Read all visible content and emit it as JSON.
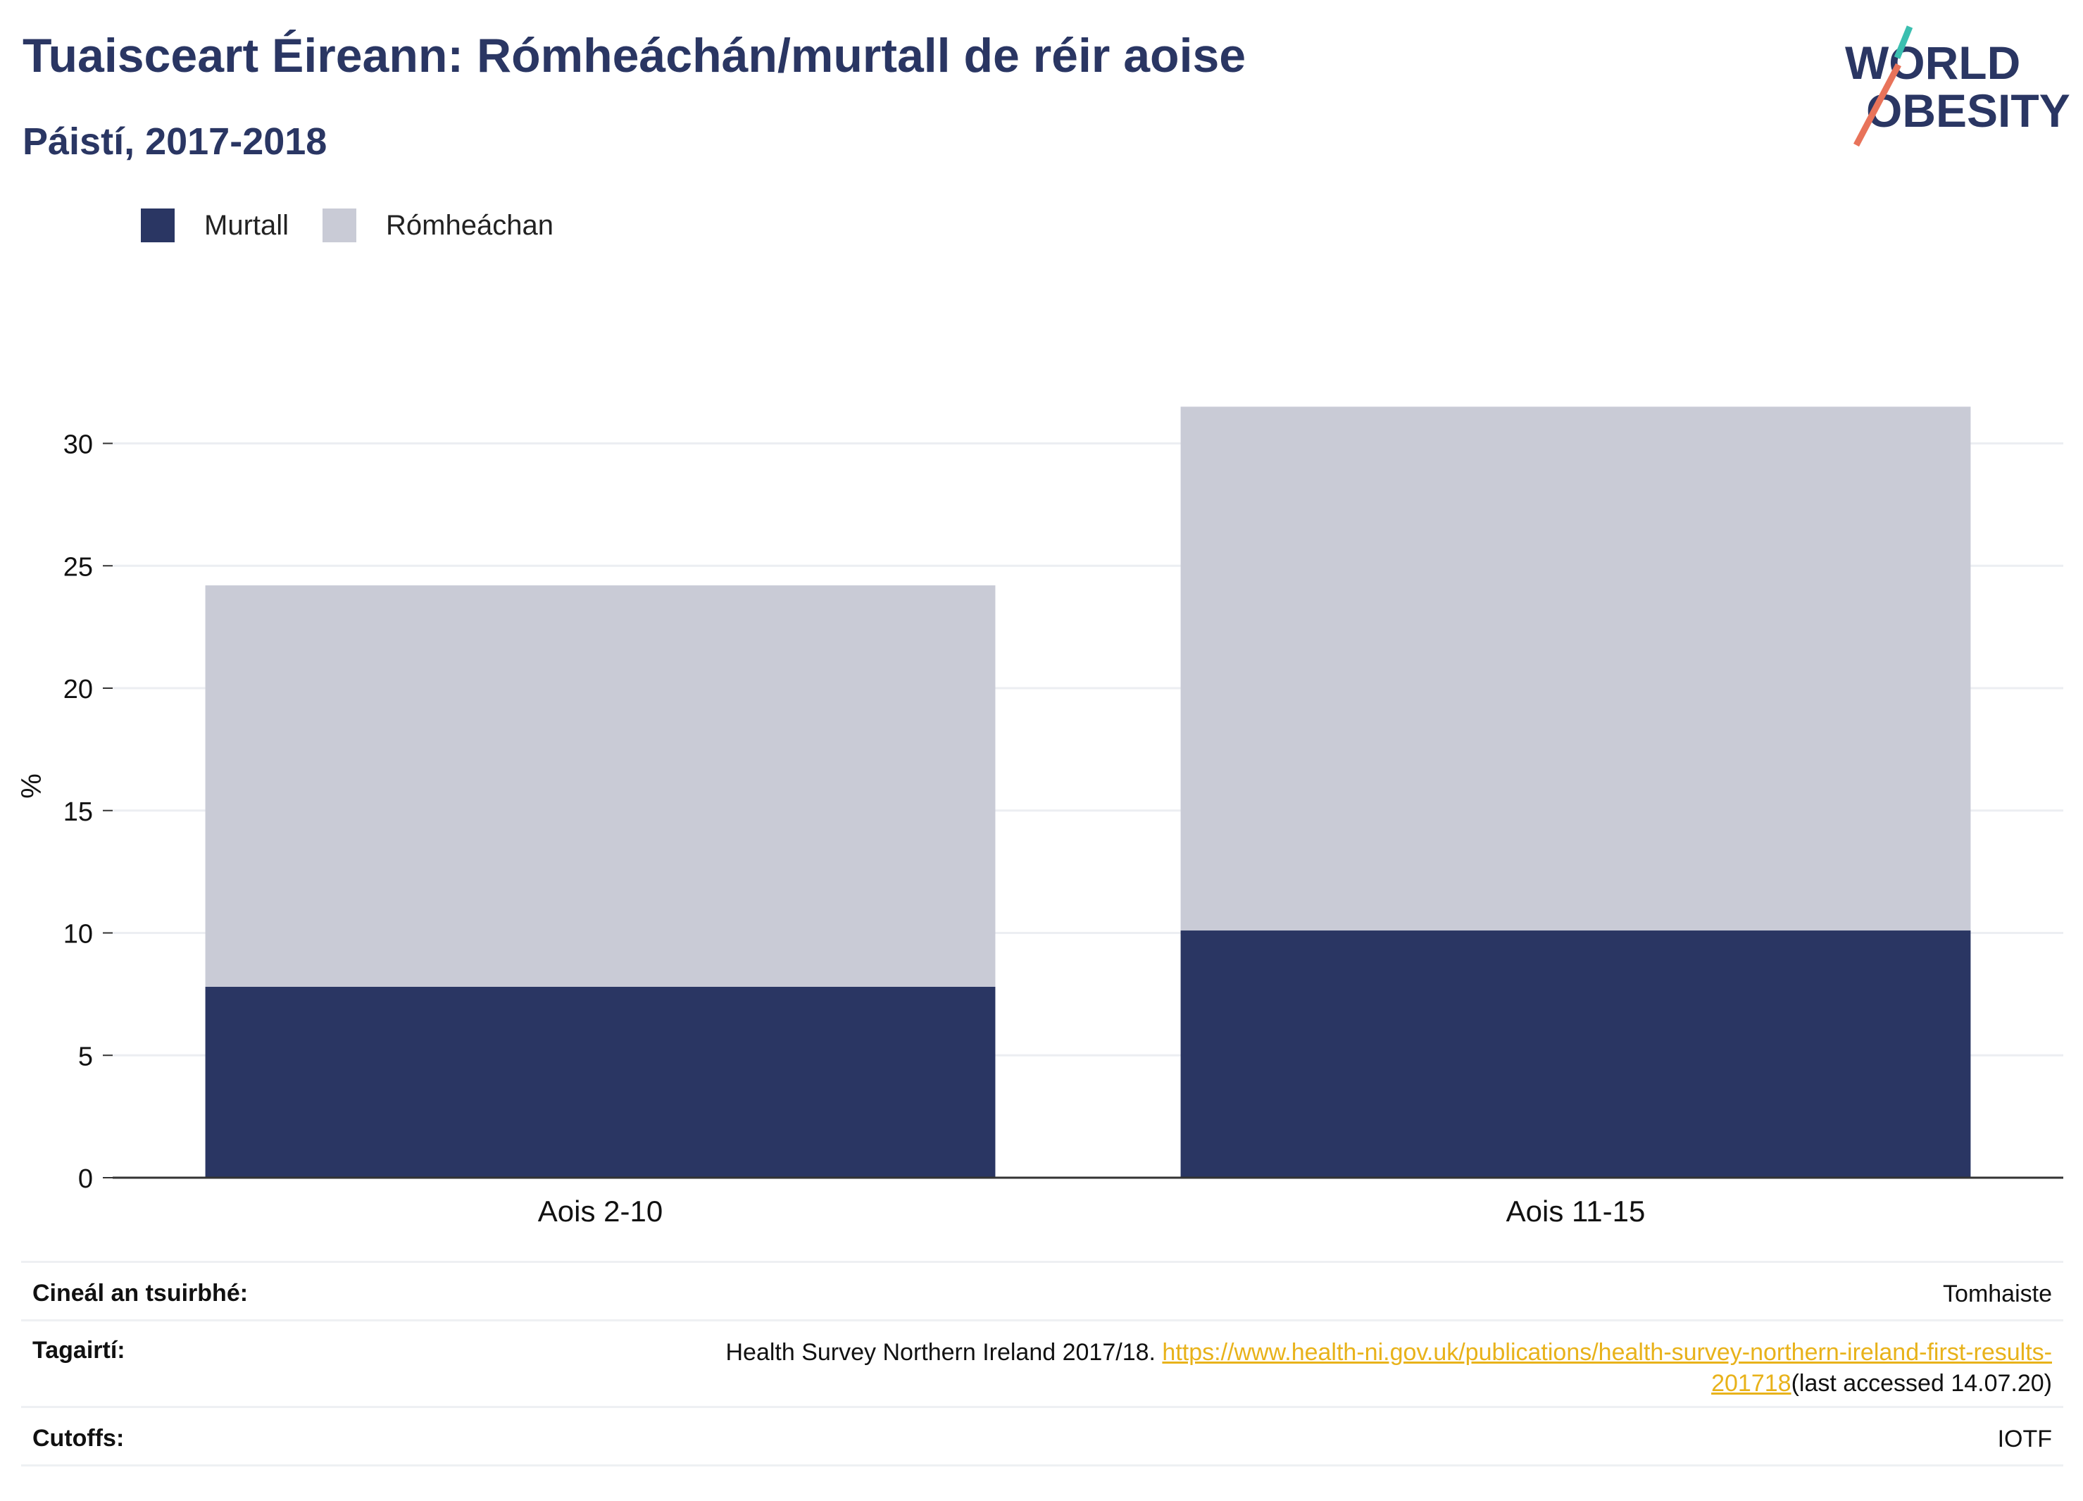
{
  "header": {
    "title": "Tuaisceart Éireann: Rómheáchán/murtall de réir aoise",
    "subtitle": "Páistí, 2017-2018"
  },
  "logo": {
    "line1": "WORLD",
    "line2": "OBESITY"
  },
  "colors": {
    "murtall": "#2a3663",
    "romheachan": "#c9cbd6",
    "accent": "#e8b21a",
    "logo_teal": "#3bbfb0",
    "logo_coral": "#e8735a"
  },
  "chart_data": {
    "type": "bar",
    "stacked": true,
    "categories": [
      "Aois 2-10",
      "Aois 11-15"
    ],
    "series": [
      {
        "name": "Murtall",
        "values": [
          7.8,
          10.1
        ]
      },
      {
        "name": "Rómheáchan",
        "values": [
          16.4,
          21.4
        ]
      }
    ],
    "ylabel": "%",
    "ylim": [
      0,
      32
    ],
    "yticks": [
      0,
      5,
      10,
      15,
      20,
      25,
      30
    ],
    "grid": true,
    "legend": "top-left"
  },
  "legend": {
    "items": [
      {
        "label": "Murtall"
      },
      {
        "label": "Rómheáchan"
      }
    ]
  },
  "meta": {
    "survey_label": "Cineál an tsuirbhé:",
    "survey_value": "Tomhaiste",
    "refs_label": "Tagairtí:",
    "refs_text": "Health Survey Northern Ireland 2017/18.",
    "refs_link_1": "https://www.health-ni.gov.uk/publications/health-survey-northern-ireland-first-results-",
    "refs_link_2": "201718",
    "refs_access": "(last accessed 14.07.20)",
    "cutoffs_label": "Cutoffs:",
    "cutoffs_value": "IOTF"
  }
}
